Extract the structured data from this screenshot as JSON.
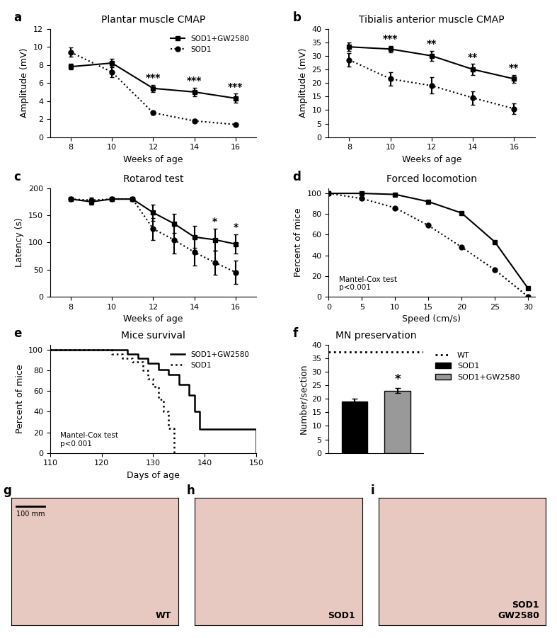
{
  "chart_data": [
    {
      "panel": "a",
      "type": "line",
      "title": "Plantar muscle CMAP",
      "x_label": "Weeks of age",
      "y_label": "Amplitude (mV)",
      "x": [
        8,
        10,
        12,
        14,
        16
      ],
      "xlim": [
        7,
        17
      ],
      "xticks": [
        8,
        10,
        12,
        14,
        16
      ],
      "ylim": [
        0,
        12
      ],
      "yticks": [
        0,
        2,
        4,
        6,
        8,
        10,
        12
      ],
      "legend": "upper right",
      "series": [
        {
          "name": "SOD1+GW2580",
          "color": "#000000",
          "marker": "square",
          "line_style": "solid",
          "values": [
            7.8,
            8.2,
            5.4,
            5.0,
            4.3
          ],
          "errors": [
            0.3,
            0.5,
            0.4,
            0.5,
            0.5
          ]
        },
        {
          "name": "SOD1",
          "color": "#000000",
          "marker": "circle",
          "line_style": "dotted",
          "values": [
            9.4,
            7.2,
            2.7,
            1.8,
            1.4
          ],
          "errors": [
            0.5,
            0.6,
            0.2,
            0.2,
            0.15
          ]
        }
      ],
      "annotations": [
        {
          "x": 12,
          "text": "***"
        },
        {
          "x": 14,
          "text": "***"
        },
        {
          "x": 16,
          "text": "***"
        }
      ]
    },
    {
      "panel": "b",
      "type": "line",
      "title": "Tibialis anterior muscle CMAP",
      "x_label": "Weeks of age",
      "y_label": "Amplitude (mV)",
      "x": [
        8,
        10,
        12,
        14,
        16
      ],
      "xlim": [
        7,
        17
      ],
      "xticks": [
        8,
        10,
        12,
        14,
        16
      ],
      "ylim": [
        0,
        40
      ],
      "yticks": [
        0,
        5,
        10,
        15,
        20,
        25,
        30,
        35,
        40
      ],
      "series": [
        {
          "name": "SOD1+GW2580",
          "color": "#000000",
          "marker": "square",
          "line_style": "solid",
          "values": [
            33.3,
            32.5,
            30,
            25,
            21.5
          ],
          "errors": [
            1.5,
            1.2,
            1.8,
            2,
            1.5
          ]
        },
        {
          "name": "SOD1",
          "color": "#000000",
          "marker": "circle",
          "line_style": "dotted",
          "values": [
            28.5,
            21.5,
            19,
            14.5,
            10.5
          ],
          "errors": [
            2.5,
            2.5,
            3,
            2.5,
            2
          ]
        }
      ],
      "annotations": [
        {
          "x": 10,
          "text": "***"
        },
        {
          "x": 12,
          "text": "**"
        },
        {
          "x": 14,
          "text": "**"
        },
        {
          "x": 16,
          "text": "**"
        }
      ]
    },
    {
      "panel": "c",
      "type": "line",
      "title": "Rotarod test",
      "x_label": "Weeks of age",
      "y_label": "Latency (s)",
      "x": [
        8,
        9,
        10,
        11,
        12,
        13,
        14,
        15,
        16
      ],
      "xlim": [
        7,
        17
      ],
      "xticks": [
        8,
        10,
        12,
        14,
        16
      ],
      "ylim": [
        0,
        200
      ],
      "yticks": [
        0,
        50,
        100,
        150,
        200
      ],
      "series": [
        {
          "name": "SOD1+GW2580",
          "color": "#000000",
          "marker": "square",
          "line_style": "solid",
          "values": [
            180,
            175,
            180,
            180,
            155,
            135,
            110,
            105,
            97
          ],
          "errors": [
            0,
            5,
            0,
            0,
            15,
            18,
            20,
            20,
            18
          ]
        },
        {
          "name": "SOD1",
          "color": "#000000",
          "marker": "circle",
          "line_style": "dotted",
          "values": [
            180,
            178,
            180,
            180,
            125,
            105,
            82,
            63,
            45
          ],
          "errors": [
            0,
            5,
            0,
            0,
            20,
            25,
            25,
            22,
            22
          ]
        }
      ],
      "annotations": [
        {
          "x": 15,
          "text": "*"
        },
        {
          "x": 16,
          "text": "*"
        }
      ]
    },
    {
      "panel": "d",
      "type": "line",
      "title": "Forced locomotion",
      "x_label": "Speed (cm/s)",
      "y_label": "Percent of mice",
      "x": [
        0,
        5,
        10,
        15,
        20,
        25,
        30
      ],
      "xlim": [
        0,
        31
      ],
      "xticks": [
        0,
        5,
        10,
        15,
        20,
        25,
        30
      ],
      "ylim": [
        0,
        105
      ],
      "yticks": [
        0,
        20,
        40,
        60,
        80,
        100
      ],
      "note": "Mantel-Cox test\np<0.001",
      "series": [
        {
          "name": "SOD1+GW2580",
          "color": "#000000",
          "marker": "square",
          "line_style": "solid",
          "values": [
            100,
            100,
            99,
            92,
            81,
            53,
            8
          ]
        },
        {
          "name": "SOD1",
          "color": "#000000",
          "marker": "circle",
          "line_style": "dotted",
          "values": [
            100,
            95,
            86,
            69,
            48,
            26,
            0
          ]
        }
      ]
    },
    {
      "panel": "e",
      "type": "step",
      "title": "Mice survival",
      "x_label": "Days of age",
      "y_label": "Percent of mice",
      "xlim": [
        110,
        150
      ],
      "xticks": [
        110,
        120,
        130,
        140,
        150
      ],
      "ylim": [
        0,
        105
      ],
      "yticks": [
        0,
        20,
        40,
        60,
        80,
        100
      ],
      "note": "Mantel-Cox test\np<0.001",
      "legend": "upper right",
      "series": [
        {
          "name": "SOD1+GW2580",
          "color": "#000000",
          "marker": "none",
          "line_style": "solid",
          "x": [
            110,
            124,
            125,
            127,
            129,
            131,
            133,
            135,
            137,
            138,
            139,
            150
          ],
          "values": [
            100,
            100,
            96,
            92,
            87,
            81,
            76,
            66,
            56,
            40,
            23,
            0
          ]
        },
        {
          "name": "SOD1",
          "color": "#000000",
          "marker": "none",
          "line_style": "dotted",
          "x": [
            110,
            122,
            124,
            126,
            128,
            129,
            130,
            131,
            132,
            133,
            134
          ],
          "values": [
            100,
            96,
            92,
            88,
            80,
            72,
            64,
            52,
            40,
            24,
            0
          ]
        }
      ]
    },
    {
      "panel": "f",
      "type": "bar",
      "title": "MN preservation",
      "y_label": "Number/section",
      "categories": [
        "SOD1",
        "SOD1+GW2580"
      ],
      "values": [
        19,
        23
      ],
      "errors": [
        1,
        1
      ],
      "colors": [
        "#000000",
        "#999999"
      ],
      "ylim": [
        0,
        40
      ],
      "yticks": [
        0,
        5,
        10,
        15,
        20,
        25,
        30,
        35,
        40
      ],
      "tick_labels": "y",
      "legend": "right",
      "reference_lines": [
        {
          "name": "WT",
          "value": 37.3,
          "line_style": "dotted",
          "color": "#000000"
        }
      ],
      "annotations": [
        {
          "category": "SOD1+GW2580",
          "text": "*"
        }
      ]
    },
    {
      "panel": "g",
      "type": "image",
      "label": "WT",
      "scale_bar": "100 mm"
    },
    {
      "panel": "h",
      "type": "image",
      "label": "SOD1"
    },
    {
      "panel": "i",
      "type": "image",
      "label": "SOD1\nGW2580"
    }
  ]
}
